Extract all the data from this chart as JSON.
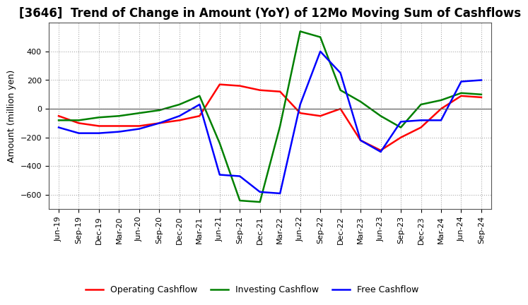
{
  "title": "[3646]  Trend of Change in Amount (YoY) of 12Mo Moving Sum of Cashflows",
  "ylabel": "Amount (million yen)",
  "x_labels": [
    "Jun-19",
    "Sep-19",
    "Dec-19",
    "Mar-20",
    "Jun-20",
    "Sep-20",
    "Dec-20",
    "Mar-21",
    "Jun-21",
    "Sep-21",
    "Dec-21",
    "Mar-22",
    "Jun-22",
    "Sep-22",
    "Dec-22",
    "Mar-23",
    "Jun-23",
    "Sep-23",
    "Dec-23",
    "Mar-24",
    "Jun-24",
    "Sep-24"
  ],
  "operating": [
    -50,
    -100,
    -120,
    -120,
    -120,
    -100,
    -80,
    -50,
    170,
    160,
    130,
    120,
    -30,
    -50,
    0,
    -220,
    -290,
    -200,
    -130,
    0,
    90,
    80
  ],
  "investing": [
    -80,
    -80,
    -60,
    -50,
    -30,
    -10,
    30,
    90,
    -240,
    -640,
    -650,
    -120,
    540,
    500,
    130,
    50,
    -50,
    -130,
    30,
    60,
    110,
    100
  ],
  "free": [
    -130,
    -170,
    -170,
    -160,
    -140,
    -100,
    -50,
    30,
    -460,
    -470,
    -580,
    -590,
    30,
    400,
    250,
    -220,
    -300,
    -90,
    -80,
    -80,
    190,
    200
  ],
  "ylim": [
    -700,
    600
  ],
  "yticks": [
    -600,
    -400,
    -200,
    0,
    200,
    400
  ],
  "operating_color": "#ff0000",
  "investing_color": "#008000",
  "free_color": "#0000ff",
  "background_color": "#ffffff",
  "grid_color": "#aaaaaa",
  "title_fontsize": 12,
  "label_fontsize": 9,
  "tick_fontsize": 8
}
